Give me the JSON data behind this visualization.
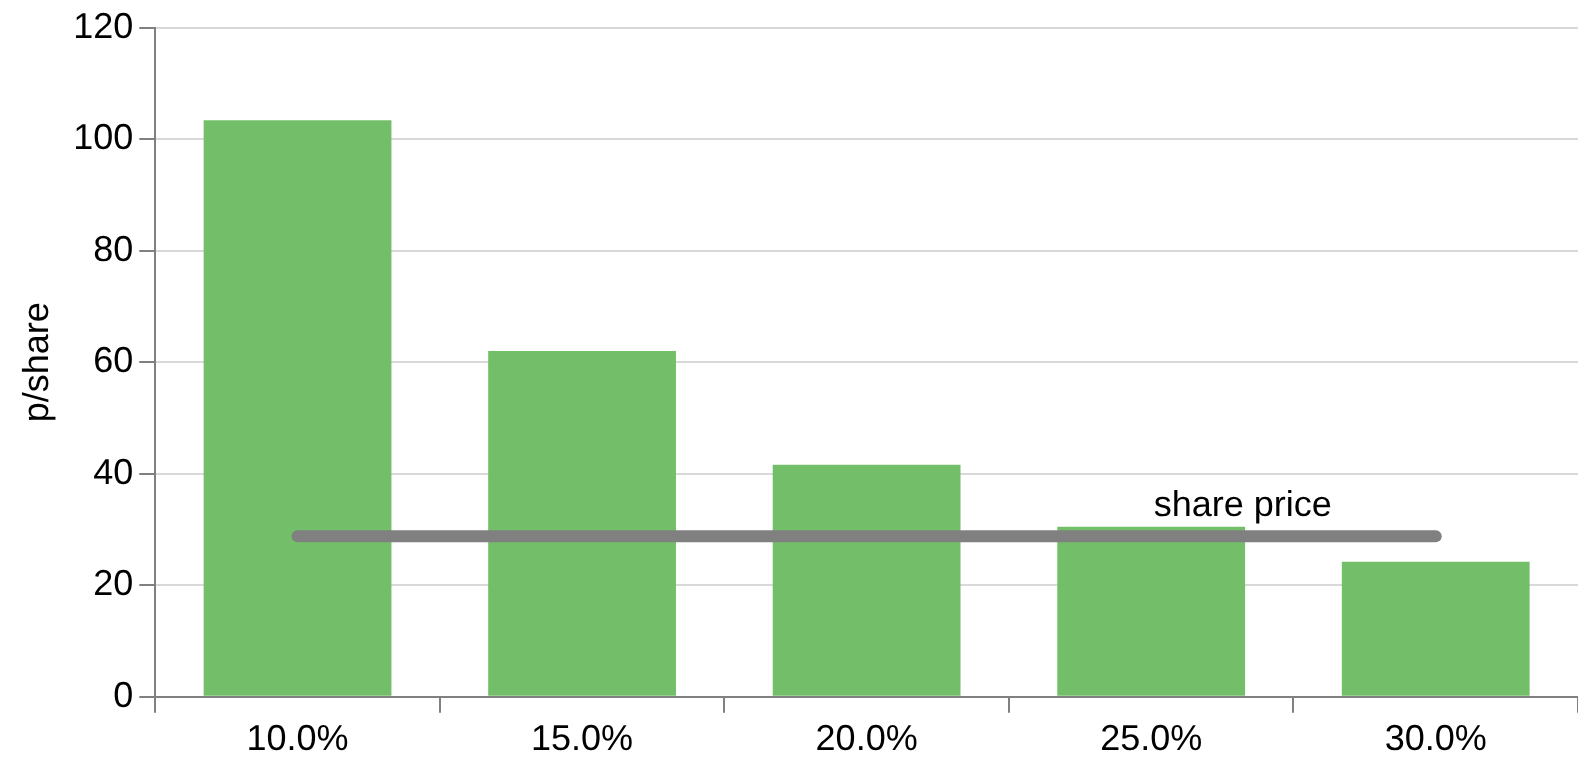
{
  "chart_data": {
    "type": "bar",
    "ylabel": "p/share",
    "categories": [
      "10.0%",
      "15.0%",
      "20.0%",
      "25.0%",
      "30.0%"
    ],
    "series": [
      {
        "color": "#73bf69",
        "values": [
          103.4,
          62,
          41.6,
          30.5,
          24.2
        ]
      },
      {
        "type": "line",
        "name": "share price",
        "color": "#808080",
        "values": [
          28.8,
          28.8,
          28.8,
          28.8,
          28.8
        ]
      }
    ],
    "ylim": [
      0,
      120
    ],
    "yticks": [
      0,
      20,
      40,
      60,
      80,
      100,
      120
    ],
    "grid": "y",
    "legend": false,
    "marker": "none"
  }
}
